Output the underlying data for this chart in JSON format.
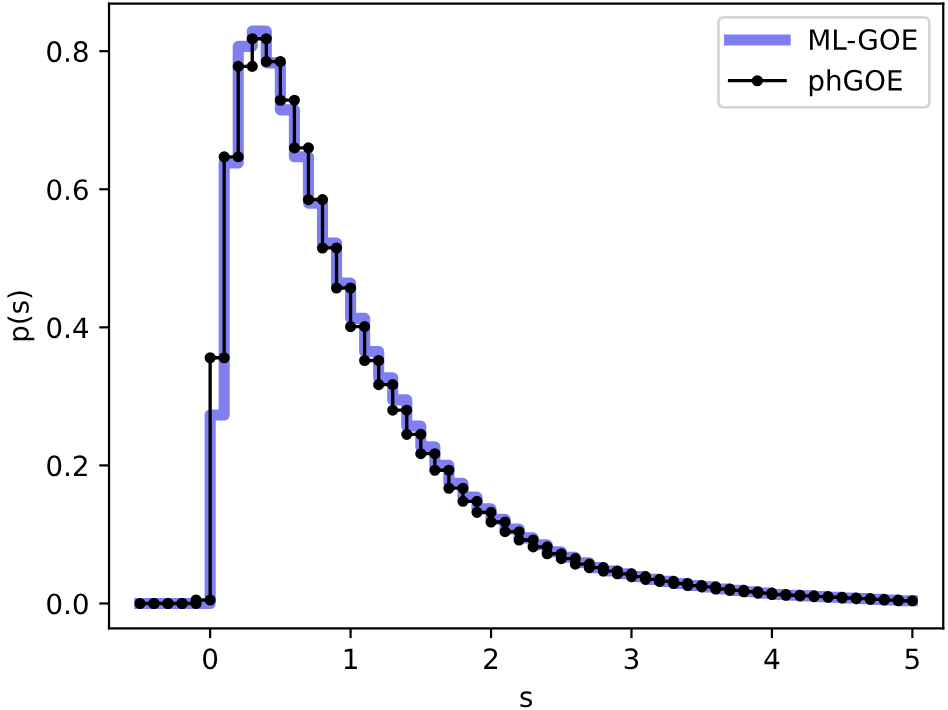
{
  "chart_data": {
    "type": "histogram",
    "xlabel": "s",
    "ylabel": "p(s)",
    "bins": [
      -0.5,
      -0.4,
      -0.3,
      -0.2,
      -0.1,
      0.0,
      0.1,
      0.2,
      0.3,
      0.4,
      0.5,
      0.6,
      0.7,
      0.8,
      0.9,
      1.0,
      1.1,
      1.2,
      1.3,
      1.4,
      1.5,
      1.6,
      1.7,
      1.8,
      1.9,
      2.0,
      2.1,
      2.2,
      2.3,
      2.4,
      2.5,
      2.6,
      2.7,
      2.8,
      2.9,
      3.0,
      3.1,
      3.2,
      3.3,
      3.4,
      3.5,
      3.6,
      3.7,
      3.8,
      3.9,
      4.0,
      4.1,
      4.2,
      4.3,
      4.4,
      4.5,
      4.6,
      4.7,
      4.8,
      4.9,
      5.0
    ],
    "series": [
      {
        "name": "ML-GOE",
        "color": "#7f7ff2",
        "marker": "none",
        "values": [
          0,
          0,
          0,
          0,
          0,
          0.273,
          0.638,
          0.807,
          0.829,
          0.783,
          0.715,
          0.647,
          0.58,
          0.522,
          0.464,
          0.413,
          0.365,
          0.327,
          0.295,
          0.257,
          0.227,
          0.2,
          0.174,
          0.154,
          0.137,
          0.122,
          0.108,
          0.095,
          0.085,
          0.075,
          0.067,
          0.059,
          0.052,
          0.047,
          0.043,
          0.039,
          0.035,
          0.032,
          0.029,
          0.026,
          0.024,
          0.021,
          0.019,
          0.017,
          0.015,
          0.013,
          0.012,
          0.011,
          0.01,
          0.009,
          0.008,
          0.007,
          0.006,
          0.005,
          0.004
        ]
      },
      {
        "name": "phGOE",
        "type": "line",
        "color": "#000000",
        "marker": "circle",
        "x": [
          -0.5,
          -0.4,
          -0.4,
          -0.3,
          -0.3,
          -0.2,
          -0.2,
          -0.1,
          -0.1,
          0.0,
          0.0,
          0.1,
          0.1,
          0.2,
          0.2,
          0.3,
          0.3,
          0.4,
          0.4,
          0.5,
          0.5,
          0.6,
          0.6,
          0.7,
          0.7,
          0.8,
          0.8,
          0.9,
          0.9,
          1.0,
          1.0,
          1.1,
          1.1,
          1.2,
          1.2,
          1.3,
          1.3,
          1.4,
          1.4,
          1.5,
          1.5,
          1.6,
          1.6,
          1.7,
          1.7,
          1.8,
          1.8,
          1.9,
          1.9,
          2.0,
          2.0,
          2.1,
          2.1,
          2.2,
          2.2,
          2.3,
          2.3,
          2.4,
          2.4,
          2.5,
          2.5,
          2.6,
          2.6,
          2.7,
          2.7,
          2.8,
          2.8,
          2.9,
          2.9,
          3.0,
          3.0,
          3.1,
          3.1,
          3.2,
          3.2,
          3.3,
          3.3,
          3.4,
          3.4,
          3.5,
          3.5,
          3.6,
          3.6,
          3.7,
          3.7,
          3.8,
          3.8,
          3.9,
          3.9,
          4.0,
          4.0,
          4.1,
          4.1,
          4.2,
          4.2,
          4.3,
          4.3,
          4.4,
          4.4,
          4.5,
          4.5,
          4.6,
          4.6,
          4.7,
          4.7,
          4.8,
          4.8,
          4.9,
          4.9,
          5.0
        ],
        "values": [
          0,
          0,
          0,
          0,
          0,
          0,
          0,
          0,
          0.005,
          0.005,
          0.356,
          0.356,
          0.647,
          0.647,
          0.778,
          0.778,
          0.818,
          0.818,
          0.785,
          0.785,
          0.729,
          0.729,
          0.66,
          0.66,
          0.585,
          0.585,
          0.515,
          0.515,
          0.457,
          0.457,
          0.401,
          0.401,
          0.352,
          0.352,
          0.317,
          0.317,
          0.28,
          0.28,
          0.245,
          0.245,
          0.217,
          0.217,
          0.193,
          0.193,
          0.167,
          0.167,
          0.148,
          0.148,
          0.132,
          0.132,
          0.118,
          0.118,
          0.104,
          0.104,
          0.092,
          0.092,
          0.082,
          0.082,
          0.072,
          0.072,
          0.065,
          0.065,
          0.057,
          0.057,
          0.052,
          0.052,
          0.047,
          0.047,
          0.043,
          0.043,
          0.039,
          0.039,
          0.035,
          0.035,
          0.032,
          0.032,
          0.029,
          0.029,
          0.026,
          0.026,
          0.024,
          0.024,
          0.021,
          0.021,
          0.019,
          0.019,
          0.017,
          0.017,
          0.015,
          0.015,
          0.013,
          0.013,
          0.012,
          0.012,
          0.011,
          0.011,
          0.01,
          0.01,
          0.009,
          0.009,
          0.008,
          0.008,
          0.007,
          0.007,
          0.006,
          0.006,
          0.005,
          0.005,
          0.004,
          0.004
        ]
      }
    ],
    "xlim": [
      -0.72,
      5.22
    ],
    "ylim": [
      -0.036,
      0.869
    ],
    "xticks": [
      0,
      1,
      2,
      3,
      4,
      5
    ],
    "yticks": [
      {
        "value": 0,
        "label": "0.0"
      },
      0.2,
      0.4,
      0.6,
      0.8
    ],
    "legend": "top right",
    "grid": false
  }
}
